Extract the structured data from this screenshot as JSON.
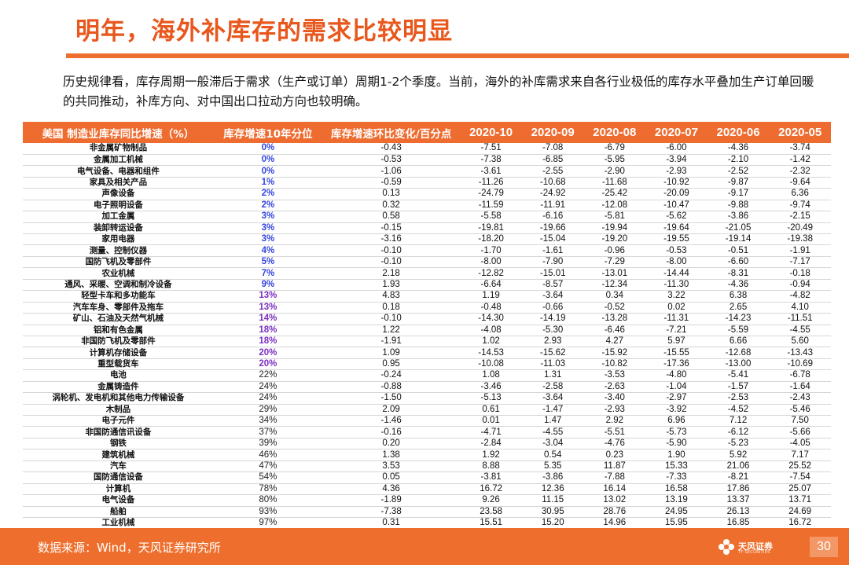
{
  "title": "明年，海外补库存的需求比较明显",
  "intro": "历史规律看，库存周期一般滞后于需求（生产或订单）周期1-2个季度。当前，海外的补库需求来自各行业极低的库存水平叠加生产订单回暖的共同推动，补库方向、对中国出口拉动方向也较明确。",
  "table": {
    "headers": [
      "美国 制造业库存同比增速（%）",
      "库存增速10年分位",
      "库存增速环比变化/百分点",
      "2020-10",
      "2020-09",
      "2020-08",
      "2020-07",
      "2020-06",
      "2020-05"
    ],
    "rows": [
      {
        "name": "非金属矿物制品",
        "pct": "0%",
        "chg": "-0.43",
        "vals": [
          "-7.51",
          "-7.08",
          "-6.79",
          "-6.00",
          "-4.36",
          "-3.74"
        ]
      },
      {
        "name": "金属加工机械",
        "pct": "0%",
        "chg": "-0.53",
        "vals": [
          "-7.38",
          "-6.85",
          "-5.95",
          "-3.94",
          "-2.10",
          "-1.42"
        ]
      },
      {
        "name": "电气设备、电器和组件",
        "pct": "0%",
        "chg": "-1.06",
        "vals": [
          "-3.61",
          "-2.55",
          "-2.90",
          "-2.93",
          "-2.52",
          "-2.32"
        ]
      },
      {
        "name": "家具及相关产品",
        "pct": "1%",
        "chg": "-0.59",
        "vals": [
          "-11.26",
          "-10.68",
          "-11.68",
          "-10.92",
          "-9.87",
          "-9.64"
        ]
      },
      {
        "name": "声像设备",
        "pct": "2%",
        "chg": "0.13",
        "vals": [
          "-24.79",
          "-24.92",
          "-25.42",
          "-20.09",
          "-9.17",
          "6.36"
        ]
      },
      {
        "name": "电子照明设备",
        "pct": "2%",
        "chg": "0.32",
        "vals": [
          "-11.59",
          "-11.91",
          "-12.08",
          "-10.47",
          "-9.88",
          "-9.74"
        ]
      },
      {
        "name": "加工金属",
        "pct": "3%",
        "chg": "0.58",
        "vals": [
          "-5.58",
          "-6.16",
          "-5.81",
          "-5.62",
          "-3.86",
          "-2.15"
        ]
      },
      {
        "name": "装卸转运设备",
        "pct": "3%",
        "chg": "-0.15",
        "vals": [
          "-19.81",
          "-19.66",
          "-19.94",
          "-19.64",
          "-21.05",
          "-20.49"
        ]
      },
      {
        "name": "家用电器",
        "pct": "3%",
        "chg": "-3.16",
        "vals": [
          "-18.20",
          "-15.04",
          "-19.20",
          "-19.55",
          "-19.14",
          "-19.38"
        ]
      },
      {
        "name": "测量、控制仪器",
        "pct": "4%",
        "chg": "-0.10",
        "vals": [
          "-1.70",
          "-1.61",
          "-0.96",
          "-0.53",
          "-0.51",
          "-1.91"
        ]
      },
      {
        "name": "国防飞机及零部件",
        "pct": "5%",
        "chg": "-0.10",
        "vals": [
          "-8.00",
          "-7.90",
          "-7.29",
          "-8.00",
          "-6.60",
          "-7.17"
        ]
      },
      {
        "name": "农业机械",
        "pct": "7%",
        "chg": "2.18",
        "vals": [
          "-12.82",
          "-15.01",
          "-13.01",
          "-14.44",
          "-8.31",
          "-0.18"
        ]
      },
      {
        "name": "通风、采暖、空调和制冷设备",
        "pct": "9%",
        "chg": "1.93",
        "vals": [
          "-6.64",
          "-8.57",
          "-12.34",
          "-11.30",
          "-4.36",
          "-0.94"
        ]
      },
      {
        "name": "轻型卡车和多功能车",
        "pct": "13%",
        "chg": "4.83",
        "vals": [
          "1.19",
          "-3.64",
          "0.34",
          "3.22",
          "6.38",
          "-4.82"
        ]
      },
      {
        "name": "汽车车身、零部件及拖车",
        "pct": "13%",
        "chg": "0.18",
        "vals": [
          "-0.48",
          "-0.66",
          "-0.52",
          "0.02",
          "2.65",
          "4.10"
        ]
      },
      {
        "name": "矿山、石油及天然气机械",
        "pct": "14%",
        "chg": "-0.10",
        "vals": [
          "-14.30",
          "-14.19",
          "-13.28",
          "-11.31",
          "-14.23",
          "-11.51"
        ]
      },
      {
        "name": "铝和有色金属",
        "pct": "18%",
        "chg": "1.22",
        "vals": [
          "-4.08",
          "-5.30",
          "-6.46",
          "-7.21",
          "-5.59",
          "-4.55"
        ]
      },
      {
        "name": "非国防飞机及零部件",
        "pct": "18%",
        "chg": "-1.91",
        "vals": [
          "1.02",
          "2.93",
          "4.27",
          "5.97",
          "6.66",
          "5.60"
        ]
      },
      {
        "name": "计算机存储设备",
        "pct": "20%",
        "chg": "1.09",
        "vals": [
          "-14.53",
          "-15.62",
          "-15.92",
          "-15.55",
          "-12.68",
          "-13.43"
        ]
      },
      {
        "name": "重型载货车",
        "pct": "20%",
        "chg": "0.95",
        "vals": [
          "-10.08",
          "-11.03",
          "-10.82",
          "-17.36",
          "-13.00",
          "-10.69"
        ]
      },
      {
        "name": "电池",
        "pct": "22%",
        "chg": "-0.24",
        "vals": [
          "1.08",
          "1.31",
          "-3.53",
          "-4.80",
          "-5.41",
          "-6.78"
        ]
      },
      {
        "name": "金属铸造件",
        "pct": "24%",
        "chg": "-0.88",
        "vals": [
          "-3.46",
          "-2.58",
          "-2.63",
          "-1.04",
          "-1.57",
          "-1.64"
        ]
      },
      {
        "name": "涡轮机、发电机和其他电力传输设备",
        "pct": "24%",
        "chg": "-1.50",
        "vals": [
          "-5.13",
          "-3.64",
          "-3.40",
          "-2.97",
          "-2.53",
          "-2.43"
        ]
      },
      {
        "name": "木制品",
        "pct": "29%",
        "chg": "2.09",
        "vals": [
          "0.61",
          "-1.47",
          "-2.93",
          "-3.92",
          "-4.52",
          "-5.46"
        ]
      },
      {
        "name": "电子元件",
        "pct": "34%",
        "chg": "-1.46",
        "vals": [
          "0.01",
          "1.47",
          "2.92",
          "6.96",
          "7.12",
          "7.50"
        ]
      },
      {
        "name": "非国防通信讯设备",
        "pct": "37%",
        "chg": "-0.16",
        "vals": [
          "-4.71",
          "-4.55",
          "-5.51",
          "-5.73",
          "-6.12",
          "-5.66"
        ]
      },
      {
        "name": "钢铁",
        "pct": "39%",
        "chg": "0.20",
        "vals": [
          "-2.84",
          "-3.04",
          "-4.76",
          "-5.90",
          "-5.23",
          "-4.05"
        ]
      },
      {
        "name": "建筑机械",
        "pct": "46%",
        "chg": "1.38",
        "vals": [
          "1.92",
          "0.54",
          "0.23",
          "1.90",
          "5.92",
          "7.17"
        ]
      },
      {
        "name": "汽车",
        "pct": "47%",
        "chg": "3.53",
        "vals": [
          "8.88",
          "5.35",
          "11.87",
          "15.33",
          "21.06",
          "25.52"
        ]
      },
      {
        "name": "国防通信设备",
        "pct": "54%",
        "chg": "0.05",
        "vals": [
          "-3.81",
          "-3.86",
          "-7.88",
          "-7.33",
          "-8.21",
          "-7.54"
        ]
      },
      {
        "name": "计算机",
        "pct": "78%",
        "chg": "4.36",
        "vals": [
          "16.72",
          "12.36",
          "16.14",
          "16.58",
          "17.86",
          "25.07"
        ]
      },
      {
        "name": "电气设备",
        "pct": "80%",
        "chg": "-1.89",
        "vals": [
          "9.26",
          "11.15",
          "13.02",
          "13.19",
          "13.37",
          "13.71"
        ]
      },
      {
        "name": "船舶",
        "pct": "93%",
        "chg": "-7.38",
        "vals": [
          "23.58",
          "30.95",
          "28.76",
          "24.95",
          "26.13",
          "24.69"
        ]
      },
      {
        "name": "工业机械",
        "pct": "97%",
        "chg": "0.31",
        "vals": [
          "15.51",
          "15.20",
          "14.96",
          "15.95",
          "16.85",
          "16.72"
        ]
      }
    ]
  },
  "footer": {
    "source": "数据来源：Wind，天风证券研究所",
    "logo_text": "天风证券",
    "logo_sub": "TF SECURITIES",
    "page_number": "30"
  },
  "colors": {
    "accent": "#ee6f2d",
    "title": "#e8571c",
    "pct_low": "#3344e0",
    "pct_mid": "#7a2fc2"
  }
}
